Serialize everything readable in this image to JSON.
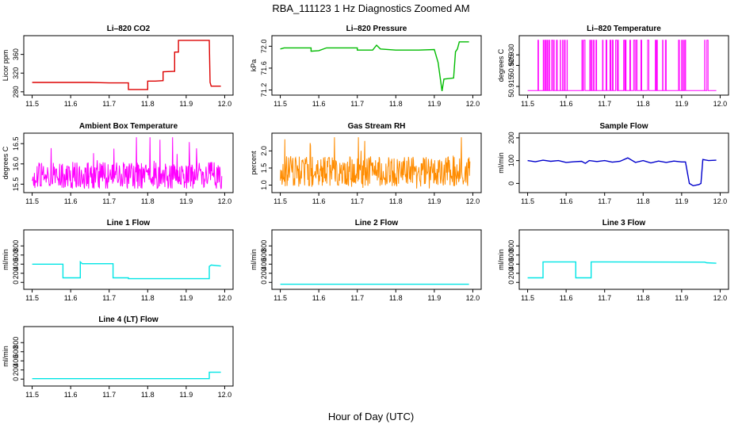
{
  "figure": {
    "title": "RBA_111123  1 Hz Diagnostics Zoomed AM",
    "xlabel": "Hour of Day (UTC)"
  },
  "chart_data": [
    {
      "id": "co2",
      "type": "line",
      "title": "Li–820 CO2",
      "ylabel": "Licor ppm",
      "xlim": [
        11.5,
        12.0
      ],
      "ylim": [
        278,
        395
      ],
      "xticks": [
        11.5,
        11.6,
        11.7,
        11.8,
        11.9,
        12.0
      ],
      "yticks": [
        280,
        320,
        360
      ],
      "color": "#dd0000",
      "style": "line",
      "series": [
        {
          "segments": [
            [
              11.5,
              300
            ],
            [
              11.55,
              300
            ],
            [
              11.6,
              300
            ],
            [
              11.65,
              300
            ],
            [
              11.7,
              299
            ],
            [
              11.75,
              299
            ],
            [
              11.75,
              285
            ],
            [
              11.8,
              285
            ],
            [
              11.8,
              303
            ],
            [
              11.82,
              303
            ],
            [
              11.84,
              304
            ],
            [
              11.84,
              323
            ],
            [
              11.87,
              324
            ],
            [
              11.87,
              365
            ],
            [
              11.88,
              365
            ],
            [
              11.88,
              390
            ],
            [
              11.92,
              390
            ],
            [
              11.96,
              390
            ],
            [
              11.962,
              300
            ],
            [
              11.965,
              292
            ],
            [
              11.99,
              292
            ]
          ]
        }
      ]
    },
    {
      "id": "pressure",
      "type": "line",
      "title": "Li–820 Pressure",
      "ylabel": "kPa",
      "xlim": [
        11.5,
        12.0
      ],
      "ylim": [
        71.15,
        72.15
      ],
      "xticks": [
        11.5,
        11.6,
        11.7,
        11.8,
        11.9,
        12.0
      ],
      "yticks": [
        71.2,
        71.6,
        72.0
      ],
      "ytick_labels": [
        "71.2",
        "71.6",
        "72.0"
      ],
      "color": "#00bb00",
      "style": "line",
      "series": [
        {
          "segments": [
            [
              11.5,
              71.95
            ],
            [
              11.51,
              71.97
            ],
            [
              11.58,
              71.97
            ],
            [
              11.58,
              71.91
            ],
            [
              11.6,
              71.92
            ],
            [
              11.62,
              71.97
            ],
            [
              11.7,
              71.97
            ],
            [
              11.7,
              71.93
            ],
            [
              11.74,
              71.93
            ],
            [
              11.75,
              72.02
            ],
            [
              11.76,
              71.95
            ],
            [
              11.8,
              71.93
            ],
            [
              11.86,
              71.93
            ],
            [
              11.9,
              71.94
            ],
            [
              11.91,
              71.7
            ],
            [
              11.92,
              71.18
            ],
            [
              11.925,
              71.4
            ],
            [
              11.95,
              71.42
            ],
            [
              11.955,
              71.9
            ],
            [
              11.96,
              71.95
            ],
            [
              11.965,
              72.08
            ],
            [
              11.975,
              72.08
            ],
            [
              11.99,
              72.08
            ]
          ]
        }
      ]
    },
    {
      "id": "temperature",
      "type": "line",
      "title": "Li–820 Temperature",
      "ylabel": "degrees C",
      "xlim": [
        11.5,
        12.0
      ],
      "ylim": [
        50.912,
        50.938
      ],
      "xticks": [
        11.5,
        11.6,
        11.7,
        11.8,
        11.9,
        12.0
      ],
      "yticks": [
        50.915,
        50.925,
        50.93
      ],
      "ytick_labels": [
        "50.915",
        "50.925",
        "50.930"
      ],
      "color": "#ff00ff",
      "style": "toggle",
      "low": 50.913,
      "high": 50.937,
      "toggle_ranges": [
        [
          11.52,
          11.61
        ],
        [
          11.63,
          11.87
        ],
        [
          11.89,
          11.92
        ],
        [
          11.95,
          11.97
        ]
      ]
    },
    {
      "id": "ambient",
      "type": "line",
      "title": "Ambient Box Temperature",
      "ylabel": "degrees C",
      "xlim": [
        11.5,
        12.0
      ],
      "ylim": [
        15.35,
        16.7
      ],
      "xticks": [
        11.5,
        11.6,
        11.7,
        11.8,
        11.9,
        12.0
      ],
      "yticks": [
        15.5,
        16.0,
        16.5
      ],
      "ytick_labels": [
        "15.5",
        "16.0",
        "16.5"
      ],
      "color": "#ff00ff",
      "style": "noise",
      "center": 15.7,
      "amplitude": 0.35,
      "spike": 0.9
    },
    {
      "id": "rh",
      "type": "line",
      "title": "Gas Stream RH",
      "ylabel": "percent",
      "xlim": [
        11.5,
        12.0
      ],
      "ylim": [
        0.85,
        2.45
      ],
      "xticks": [
        11.5,
        11.6,
        11.7,
        11.8,
        11.9,
        12.0
      ],
      "yticks": [
        1.0,
        1.5,
        2.0
      ],
      "ytick_labels": [
        "1.0",
        "1.5",
        "2.0"
      ],
      "color": "#ff8c00",
      "style": "noise",
      "center": 1.4,
      "amplitude": 0.45,
      "spike": 1.0
    },
    {
      "id": "sample_flow",
      "type": "line",
      "title": "Sample Flow",
      "ylabel": "ml/min",
      "xlim": [
        11.5,
        12.0
      ],
      "ylim": [
        -30,
        210
      ],
      "xticks": [
        11.5,
        11.6,
        11.7,
        11.8,
        11.9,
        12.0
      ],
      "yticks": [
        0,
        100,
        200
      ],
      "color": "#0000cc",
      "style": "line",
      "series": [
        {
          "segments": [
            [
              11.5,
              100
            ],
            [
              11.52,
              95
            ],
            [
              11.54,
              102
            ],
            [
              11.56,
              97
            ],
            [
              11.58,
              100
            ],
            [
              11.6,
              92
            ],
            [
              11.62,
              95
            ],
            [
              11.64,
              97
            ],
            [
              11.65,
              88
            ],
            [
              11.66,
              100
            ],
            [
              11.68,
              96
            ],
            [
              11.7,
              100
            ],
            [
              11.72,
              93
            ],
            [
              11.74,
              97
            ],
            [
              11.76,
              112
            ],
            [
              11.78,
              92
            ],
            [
              11.8,
              100
            ],
            [
              11.82,
              90
            ],
            [
              11.84,
              98
            ],
            [
              11.86,
              92
            ],
            [
              11.88,
              98
            ],
            [
              11.9,
              94
            ],
            [
              11.91,
              94
            ],
            [
              11.92,
              0
            ],
            [
              11.93,
              -10
            ],
            [
              11.945,
              -5
            ],
            [
              11.95,
              0
            ],
            [
              11.955,
              105
            ],
            [
              11.97,
              100
            ],
            [
              11.99,
              102
            ]
          ]
        }
      ]
    },
    {
      "id": "line1",
      "type": "line",
      "title": "Line 1 Flow",
      "ylabel": "ml/min",
      "xlim": [
        11.5,
        12.0
      ],
      "ylim": [
        -100,
        1100
      ],
      "xticks": [
        11.5,
        11.6,
        11.7,
        11.8,
        11.9,
        12.0
      ],
      "yticks": [
        0,
        200,
        400,
        600,
        800
      ],
      "color": "#00e5e5",
      "style": "line",
      "series": [
        {
          "segments": [
            [
              11.5,
              400
            ],
            [
              11.58,
              400
            ],
            [
              11.58,
              100
            ],
            [
              11.625,
              100
            ],
            [
              11.625,
              450
            ],
            [
              11.63,
              410
            ],
            [
              11.71,
              410
            ],
            [
              11.71,
              100
            ],
            [
              11.75,
              100
            ],
            [
              11.75,
              80
            ],
            [
              11.96,
              80
            ],
            [
              11.96,
              350
            ],
            [
              11.965,
              380
            ],
            [
              11.99,
              360
            ]
          ]
        }
      ]
    },
    {
      "id": "line2",
      "type": "line",
      "title": "Line 2 Flow",
      "ylabel": "ml/min",
      "xlim": [
        11.5,
        12.0
      ],
      "ylim": [
        -100,
        1100
      ],
      "xticks": [
        11.5,
        11.6,
        11.7,
        11.8,
        11.9,
        12.0
      ],
      "yticks": [
        0,
        200,
        400,
        600,
        800
      ],
      "color": "#00e5e5",
      "style": "line",
      "series": [
        {
          "segments": [
            [
              11.5,
              -40
            ],
            [
              11.99,
              -40
            ]
          ]
        }
      ]
    },
    {
      "id": "line3",
      "type": "line",
      "title": "Line 3 Flow",
      "ylabel": "ml/min",
      "xlim": [
        11.5,
        12.0
      ],
      "ylim": [
        -100,
        1100
      ],
      "xticks": [
        11.5,
        11.6,
        11.7,
        11.8,
        11.9,
        12.0
      ],
      "yticks": [
        0,
        200,
        400,
        600,
        800
      ],
      "color": "#00e5e5",
      "style": "line",
      "series": [
        {
          "segments": [
            [
              11.5,
              100
            ],
            [
              11.54,
              100
            ],
            [
              11.54,
              450
            ],
            [
              11.625,
              450
            ],
            [
              11.625,
              100
            ],
            [
              11.665,
              100
            ],
            [
              11.665,
              450
            ],
            [
              11.96,
              445
            ],
            [
              11.965,
              430
            ],
            [
              11.99,
              420
            ]
          ]
        }
      ]
    },
    {
      "id": "line4",
      "type": "line",
      "title": "Line 4 (LT) Flow",
      "ylabel": "ml/min",
      "xlim": [
        11.5,
        12.0
      ],
      "ylim": [
        -100,
        1100
      ],
      "xticks": [
        11.5,
        11.6,
        11.7,
        11.8,
        11.9,
        12.0
      ],
      "yticks": [
        0,
        200,
        400,
        600,
        800
      ],
      "color": "#00e5e5",
      "style": "line",
      "series": [
        {
          "segments": [
            [
              11.5,
              10
            ],
            [
              11.96,
              10
            ],
            [
              11.96,
              150
            ],
            [
              11.99,
              150
            ]
          ]
        }
      ]
    }
  ]
}
